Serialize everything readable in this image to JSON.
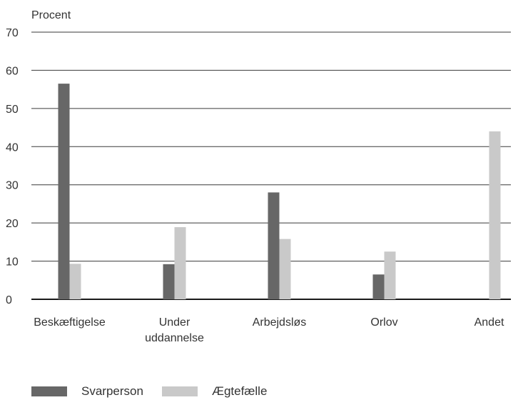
{
  "chart_data": {
    "type": "bar",
    "ylabel": "Procent",
    "xlabel": "",
    "ylim": [
      0,
      70
    ],
    "yticks": [
      0,
      10,
      20,
      30,
      40,
      50,
      60,
      70
    ],
    "grid": true,
    "legend_position": "bottom-left",
    "categories": [
      [
        "Beskæftigelse"
      ],
      [
        "Under",
        "uddannelse"
      ],
      [
        "Arbejdsløs"
      ],
      [
        "Orlov"
      ],
      [
        "Andet"
      ]
    ],
    "series": [
      {
        "name": "Svarperson",
        "color": "#676767",
        "values": [
          56.5,
          9.2,
          28.0,
          6.5,
          0
        ]
      },
      {
        "name": "Ægtefælle",
        "color": "#c9c9c9",
        "values": [
          9.3,
          18.9,
          15.8,
          12.5,
          44.0
        ]
      }
    ]
  }
}
